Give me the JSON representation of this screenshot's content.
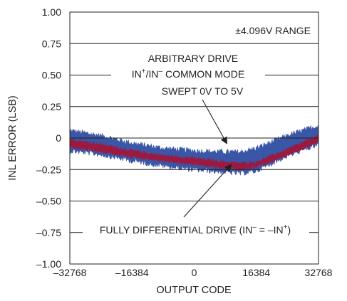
{
  "chart_data": {
    "type": "line",
    "xlabel": "OUTPUT CODE",
    "ylabel": "INL ERROR (LSB)",
    "xlim": [
      -32768,
      32768
    ],
    "ylim": [
      -1.0,
      1.0
    ],
    "x_ticks": [
      "–32768",
      "–16384",
      "0",
      "16384",
      "32768"
    ],
    "y_ticks": [
      "1.00",
      "0.75",
      "0.50",
      "0.25",
      "0",
      "–0.25",
      "–0.50",
      "–0.75",
      "–1.00"
    ],
    "grid": "horizontal",
    "legend": "none",
    "annotations": {
      "range": "±4.096V RANGE",
      "arbitrary_line1": "ARBITRARY DRIVE",
      "arbitrary_line2_in": "IN",
      "arbitrary_line2_plus": "+",
      "arbitrary_line2_slash": "/IN",
      "arbitrary_line2_minus": "–",
      "arbitrary_line2_rest": " COMMON MODE",
      "arbitrary_line3": "SWEPT 0V TO 5V",
      "fully_diff_a": "FULLY DIFFERENTIAL DRIVE (IN",
      "fully_diff_minus": "–",
      "fully_diff_b": " = –IN",
      "fully_diff_plus": "+",
      "fully_diff_c": ")"
    },
    "series": [
      {
        "color": "#3a56a6",
        "x": [
          -32768,
          -24576,
          -16384,
          -8192,
          0,
          8192,
          12288,
          16384,
          24576,
          32768
        ],
        "y_upper": [
          0.06,
          0.02,
          -0.04,
          -0.08,
          -0.1,
          -0.11,
          -0.11,
          -0.08,
          0.02,
          0.1
        ],
        "y_lower": [
          -0.1,
          -0.13,
          -0.18,
          -0.22,
          -0.25,
          -0.27,
          -0.28,
          -0.26,
          -0.14,
          -0.05
        ]
      },
      {
        "color": "#9c1a3f",
        "x": [
          -32768,
          -24576,
          -16384,
          -8192,
          0,
          8192,
          12288,
          16384,
          24576,
          32768
        ],
        "y_upper": [
          -0.01,
          -0.05,
          -0.1,
          -0.14,
          -0.16,
          -0.19,
          -0.2,
          -0.19,
          -0.09,
          0.02
        ],
        "y_lower": [
          -0.07,
          -0.11,
          -0.15,
          -0.18,
          -0.21,
          -0.24,
          -0.25,
          -0.23,
          -0.14,
          -0.03
        ]
      }
    ],
    "colors": {
      "axis": "#231f20",
      "grid": "#231f20",
      "text": "#231f20"
    }
  }
}
